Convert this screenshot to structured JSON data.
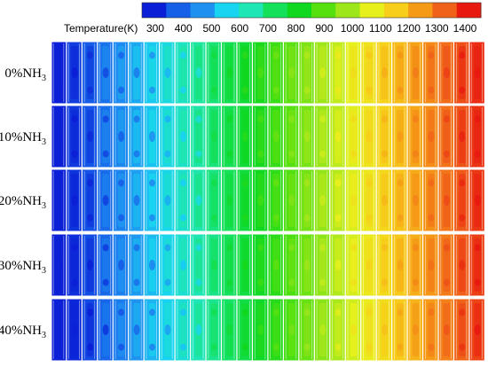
{
  "legend": {
    "title": "Temperature(K)",
    "ticks": [
      "300",
      "400",
      "500",
      "600",
      "700",
      "800",
      "900",
      "1000",
      "1100",
      "1200",
      "1300",
      "1400"
    ],
    "colors": [
      "#0a1fd6",
      "#1660e8",
      "#1e90f0",
      "#18d4f0",
      "#1ee6b4",
      "#14e05a",
      "#10d820",
      "#56e010",
      "#9ce61a",
      "#e8f01c",
      "#f7cf1a",
      "#f59a16",
      "#f0621a",
      "#e81a10"
    ]
  },
  "rows": [
    {
      "main": "0%NH",
      "sub": "3"
    },
    {
      "main": "10%NH",
      "sub": "3"
    },
    {
      "main": "20%NH",
      "sub": "3"
    },
    {
      "main": "30%NH",
      "sub": "3"
    },
    {
      "main": "40%NH",
      "sub": "3"
    }
  ]
}
